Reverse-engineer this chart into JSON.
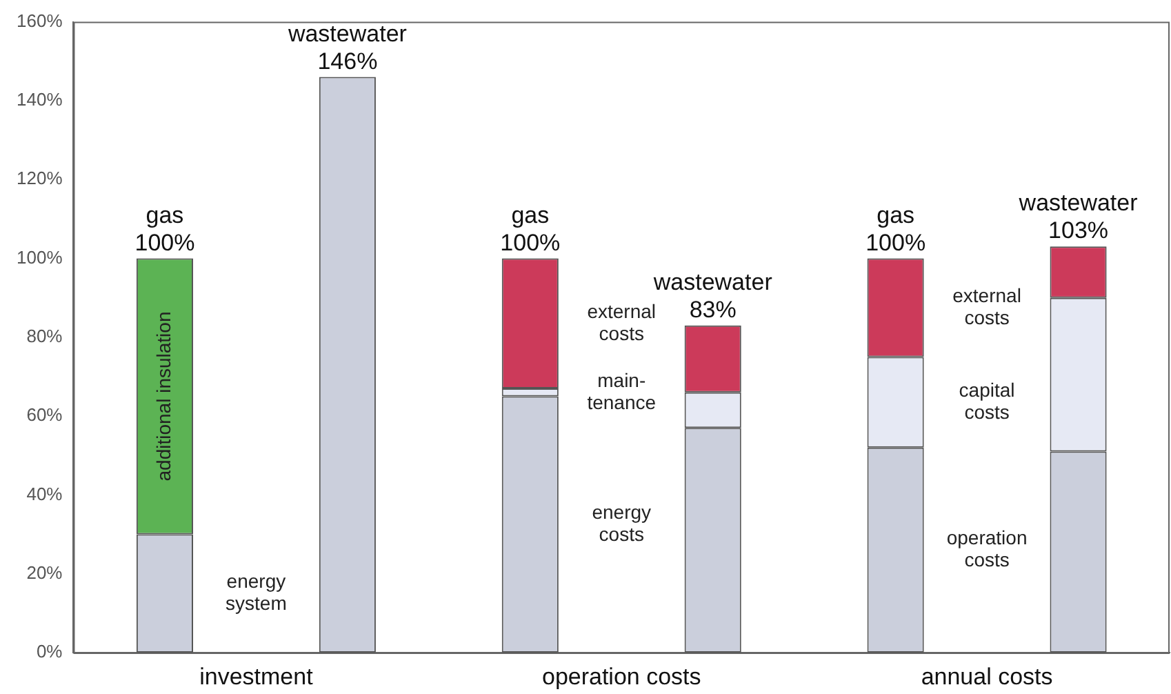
{
  "chart_data": {
    "type": "bar",
    "stacked": true,
    "categories": [
      "gas",
      "wastewater",
      "gas",
      "wastewater",
      "gas",
      "wastewater"
    ],
    "totals": [
      "100%",
      "146%",
      "100%",
      "83%",
      "100%",
      "103%"
    ],
    "series": [
      {
        "name": "energy system",
        "color": "#cbcfdc",
        "values": [
          30,
          null,
          null,
          null,
          null,
          null
        ]
      },
      {
        "color": "#cbcfdc",
        "values": [
          null,
          146,
          null,
          null,
          null,
          null
        ]
      },
      {
        "name": "energy costs",
        "color": "#cbcfdc",
        "values": [
          null,
          null,
          65,
          57,
          null,
          null
        ]
      },
      {
        "name": "operation costs",
        "color": "#cbcfdc",
        "values": [
          null,
          null,
          null,
          null,
          52,
          51
        ]
      },
      {
        "name": "additional insulation",
        "color": "#5cb354",
        "values": [
          70,
          null,
          null,
          null,
          null,
          null
        ]
      },
      {
        "name": "main-tenance",
        "color": "#e6e9f4",
        "values": [
          null,
          null,
          2,
          9,
          null,
          null
        ]
      },
      {
        "name": "capital costs",
        "color": "#e6e9f4",
        "values": [
          null,
          null,
          null,
          null,
          23,
          39
        ]
      },
      {
        "name": "external costs",
        "color": "#cc3a5a",
        "values": [
          null,
          null,
          33,
          17,
          25,
          13
        ]
      }
    ],
    "ylim": [
      0,
      160
    ],
    "yticks": [
      {
        "value": 0,
        "label": "0%"
      },
      {
        "value": 20,
        "label": "20%"
      },
      {
        "value": 40,
        "label": "40%"
      },
      {
        "value": 60,
        "label": "60%"
      },
      {
        "value": 80,
        "label": "80%"
      },
      {
        "value": 100,
        "label": "100%"
      },
      {
        "value": 120,
        "label": "120%"
      },
      {
        "value": 140,
        "label": "140%"
      },
      {
        "value": 160,
        "label": "160%"
      }
    ],
    "grid": false,
    "legend": false,
    "tick_labels": "y",
    "annotations": [
      "investment",
      "operation costs",
      "annual costs"
    ]
  }
}
